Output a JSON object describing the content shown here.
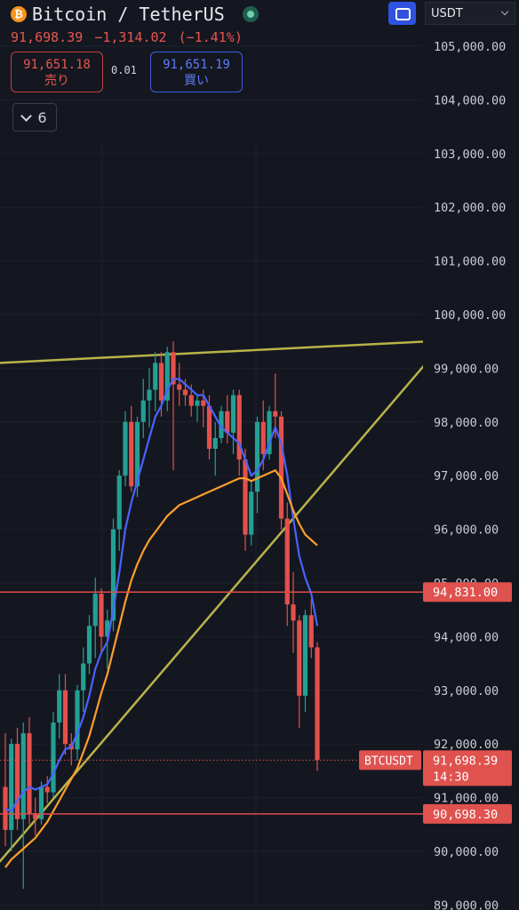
{
  "header": {
    "coin_icon": "bitcoin-icon",
    "title": "Bitcoin / TetherUS",
    "last_price": "91,698.39",
    "change": "−1,314.02",
    "change_pct": "(−1.41%)",
    "sell_price": "91,651.18",
    "sell_label": "売り",
    "spread": "0.01",
    "buy_price": "91,651.19",
    "buy_label": "買い",
    "indicator_count": "6",
    "currency": "USDT",
    "colors": {
      "down": "#e8564f",
      "buy": "#3d5de0"
    }
  },
  "chart_data": {
    "type": "candlestick",
    "symbol_label": "BTCUSDT",
    "ylim": [
      89000,
      105600
    ],
    "y_ticks": [
      89000,
      90000,
      91000,
      92000,
      93000,
      94000,
      95000,
      96000,
      97000,
      98000,
      99000,
      100000,
      101000,
      102000,
      103000,
      104000,
      105000
    ],
    "y_tick_labels": [
      "89,000.00",
      "90,000.00",
      "91,000.00",
      "92,000.00",
      "93,000.00",
      "94,000.00",
      "95,000.00",
      "96,000.00",
      "97,000.00",
      "98,000.00",
      "99,000.00",
      "100,000.00",
      "101,000.00",
      "102,000.00",
      "103,000.00",
      "104,000.00",
      "105,000.00"
    ],
    "price_label": "91,698.39",
    "countdown": "14:30",
    "price_levels": [
      {
        "value": 94831,
        "label": "94,831.00",
        "color": "#e04b4b"
      },
      {
        "value": 90698.3,
        "label": "90,698.30",
        "color": "#e04b4b"
      }
    ],
    "current_price": 91698.39,
    "candles": [
      [
        91200,
        92200,
        90100,
        90400
      ],
      [
        90400,
        92100,
        90000,
        92000
      ],
      [
        92000,
        92300,
        90400,
        90600
      ],
      [
        90600,
        92400,
        89300,
        92200
      ],
      [
        92200,
        92500,
        90500,
        90700
      ],
      [
        90700,
        91000,
        90300,
        90600
      ],
      [
        90600,
        91300,
        90500,
        91200
      ],
      [
        91200,
        91400,
        90900,
        91100
      ],
      [
        91100,
        92600,
        91000,
        92400
      ],
      [
        92400,
        93300,
        92100,
        93000
      ],
      [
        93000,
        93300,
        91800,
        92000
      ],
      [
        92000,
        92200,
        91600,
        91900
      ],
      [
        91900,
        93100,
        91700,
        93000
      ],
      [
        93000,
        93800,
        92600,
        93500
      ],
      [
        93500,
        94400,
        93300,
        94200
      ],
      [
        94200,
        95100,
        93600,
        94800
      ],
      [
        94800,
        94900,
        93700,
        94000
      ],
      [
        94000,
        94500,
        93400,
        94300
      ],
      [
        94300,
        96200,
        94100,
        96000
      ],
      [
        96000,
        97100,
        95600,
        97000
      ],
      [
        97000,
        98200,
        96800,
        98000
      ],
      [
        98000,
        98300,
        96700,
        96800
      ],
      [
        96800,
        98100,
        96600,
        98000
      ],
      [
        98000,
        98800,
        97700,
        98400
      ],
      [
        98400,
        99000,
        97900,
        98600
      ],
      [
        98600,
        99300,
        98200,
        99100
      ],
      [
        99100,
        99300,
        98100,
        98400
      ],
      [
        98400,
        99400,
        98200,
        99300
      ],
      [
        99300,
        99500,
        97100,
        98700
      ],
      [
        98700,
        99100,
        98300,
        98600
      ],
      [
        98600,
        98800,
        98300,
        98500
      ],
      [
        98500,
        98700,
        98100,
        98300
      ],
      [
        98300,
        98500,
        98000,
        98400
      ],
      [
        98400,
        98600,
        97900,
        98300
      ],
      [
        98300,
        98500,
        97300,
        97500
      ],
      [
        97500,
        98000,
        97000,
        97700
      ],
      [
        97700,
        98300,
        97600,
        98200
      ],
      [
        98200,
        98500,
        97600,
        97800
      ],
      [
        97800,
        98600,
        97400,
        98500
      ],
      [
        98500,
        98600,
        97000,
        97300
      ],
      [
        97300,
        97500,
        95600,
        95900
      ],
      [
        95900,
        96900,
        95700,
        96700
      ],
      [
        96700,
        98100,
        96300,
        98000
      ],
      [
        98000,
        98400,
        97100,
        97400
      ],
      [
        97400,
        98300,
        97300,
        98200
      ],
      [
        98200,
        98900,
        97700,
        98100
      ],
      [
        98100,
        98200,
        96000,
        96200
      ],
      [
        96200,
        96500,
        94200,
        94600
      ],
      [
        94600,
        95200,
        93700,
        94300
      ],
      [
        94300,
        94400,
        92300,
        92900
      ],
      [
        92900,
        94500,
        92600,
        94400
      ],
      [
        94400,
        94700,
        93600,
        93800
      ],
      [
        93800,
        93900,
        91500,
        91700
      ]
    ],
    "series": [
      {
        "kind": "ma-fast",
        "color": "#4a63ff",
        "values": [
          90800,
          90750,
          90950,
          91100,
          91200,
          91150,
          91200,
          91250,
          91450,
          91700,
          91900,
          91950,
          92200,
          92500,
          92900,
          93400,
          93700,
          93900,
          94500,
          95200,
          96000,
          96500,
          96900,
          97300,
          97700,
          98100,
          98300,
          98600,
          98800,
          98800,
          98700,
          98600,
          98500,
          98500,
          98300,
          98100,
          97900,
          97800,
          97700,
          97600,
          97300,
          97000,
          97100,
          97300,
          97600,
          97900,
          97600,
          97000,
          96200,
          95500,
          95100,
          94800,
          94200
        ]
      },
      {
        "kind": "ma-slow",
        "color": "#ff9e2c",
        "values": [
          89700,
          89850,
          89950,
          90050,
          90150,
          90250,
          90400,
          90550,
          90750,
          90950,
          91150,
          91350,
          91550,
          91850,
          92150,
          92550,
          92950,
          93300,
          93750,
          94200,
          94650,
          95050,
          95350,
          95600,
          95800,
          95950,
          96100,
          96250,
          96350,
          96450,
          96500,
          96550,
          96600,
          96650,
          96700,
          96750,
          96800,
          96850,
          96900,
          96950,
          96950,
          96900,
          96950,
          97000,
          97050,
          97100,
          96950,
          96650,
          96350,
          96100,
          95900,
          95800,
          95700
        ]
      }
    ],
    "trendlines": [
      {
        "color": "#b9b34a",
        "from": [
          -1,
          99100
        ],
        "to": [
          74,
          99520
        ]
      },
      {
        "color": "#b9b34a",
        "from": [
          -1,
          89800
        ],
        "to": [
          74,
          99600
        ]
      }
    ]
  }
}
